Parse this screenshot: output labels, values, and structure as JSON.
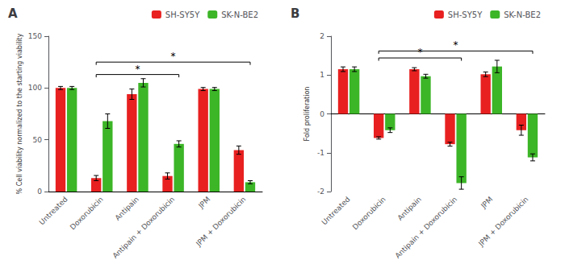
{
  "chart_data": [
    {
      "type": "bar",
      "title": "A",
      "categories": [
        "Untreated",
        "Doxorubicin",
        "Antipain",
        "Antipain + Doxorubicin",
        "JPM",
        "JPM + Doxorubicin"
      ],
      "series": [
        {
          "name": "SH-SY5Y",
          "color": "#e82020",
          "values": [
            100,
            13,
            94,
            15,
            99,
            40
          ],
          "errors": [
            1.5,
            2.5,
            5,
            3,
            1.5,
            4
          ]
        },
        {
          "name": "SK-N-BE2",
          "color": "#3cb527",
          "values": [
            100,
            68,
            105,
            46,
            99,
            9
          ],
          "errors": [
            1.5,
            7,
            4,
            3,
            1.5,
            1.5
          ]
        }
      ],
      "ylabel": "% Cell viability normalized to the starting viability",
      "ylim": [
        0,
        150
      ],
      "yticks": [
        0,
        50,
        100,
        150
      ],
      "grid": false,
      "legend": "upper right",
      "annotations": [
        {
          "x1": "Doxorubicin",
          "x2": "Antipain + Doxorubicin",
          "y": 113,
          "label": "*"
        },
        {
          "x1": "Doxorubicin",
          "x2": "JPM + Doxorubicin",
          "y": 125,
          "label": "*"
        }
      ]
    },
    {
      "type": "bar",
      "title": "B",
      "categories": [
        "Untreated",
        "Doxorubicin",
        "Antipain",
        "Antipain + Doxorubicin",
        "JPM",
        "JPM + Doxorubicin"
      ],
      "series": [
        {
          "name": "SH-SY5Y",
          "color": "#e82020",
          "values": [
            1.15,
            -0.62,
            1.15,
            -0.78,
            1.02,
            -0.42
          ],
          "errors": [
            0.06,
            0.03,
            0.04,
            0.05,
            0.06,
            0.13
          ]
        },
        {
          "name": "SK-N-BE2",
          "color": "#3cb527",
          "values": [
            1.15,
            -0.42,
            0.97,
            -1.78,
            1.22,
            -1.12
          ],
          "errors": [
            0.06,
            0.06,
            0.05,
            0.16,
            0.16,
            0.09
          ]
        }
      ],
      "ylabel": "Fold proliferation",
      "ylim": [
        -2,
        2
      ],
      "yticks": [
        -2,
        -1,
        0,
        1,
        2
      ],
      "grid": false,
      "legend": "upper right",
      "annotations": [
        {
          "x1": "Doxorubicin",
          "x2": "Antipain + Doxorubicin",
          "y": 1.44,
          "label": "*"
        },
        {
          "x1": "Doxorubicin",
          "x2": "JPM + Doxorubicin",
          "y": 1.62,
          "label": "*"
        }
      ]
    }
  ]
}
